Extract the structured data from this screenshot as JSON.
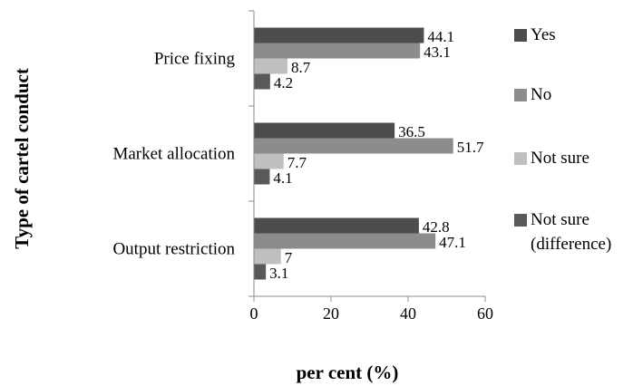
{
  "chart_data": {
    "type": "bar",
    "orientation": "horizontal",
    "ylabel": "Type of cartel conduct",
    "xlabel": "per cent (%)",
    "xlim": [
      0,
      60
    ],
    "x_ticks": [
      0,
      20,
      40,
      60
    ],
    "grid": false,
    "legend_position": "right",
    "categories": [
      "Price fixing",
      "Market allocation",
      "Output restriction"
    ],
    "series": [
      {
        "name": "Yes",
        "color": "#4d4d4d",
        "values": [
          44.1,
          36.5,
          42.8
        ]
      },
      {
        "name": "No",
        "color": "#8c8c8c",
        "values": [
          43.1,
          51.7,
          47.1
        ]
      },
      {
        "name": "Not sure",
        "color": "#bfbfbf",
        "values": [
          8.7,
          7.7,
          7
        ]
      },
      {
        "name": "Not sure (difference)",
        "color": "#595959",
        "values": [
          4.2,
          4.1,
          3.1
        ]
      }
    ],
    "data_labels": [
      [
        "44.1",
        "36.5",
        "42.8"
      ],
      [
        "43.1",
        "51.7",
        "47.1"
      ],
      [
        "8.7",
        "7.7",
        "7"
      ],
      [
        "4.2",
        "4.1",
        "3.1"
      ]
    ],
    "legend_labels": [
      [
        "Yes"
      ],
      [
        "No"
      ],
      [
        "Not sure"
      ],
      [
        "Not sure",
        "(difference)"
      ]
    ]
  }
}
